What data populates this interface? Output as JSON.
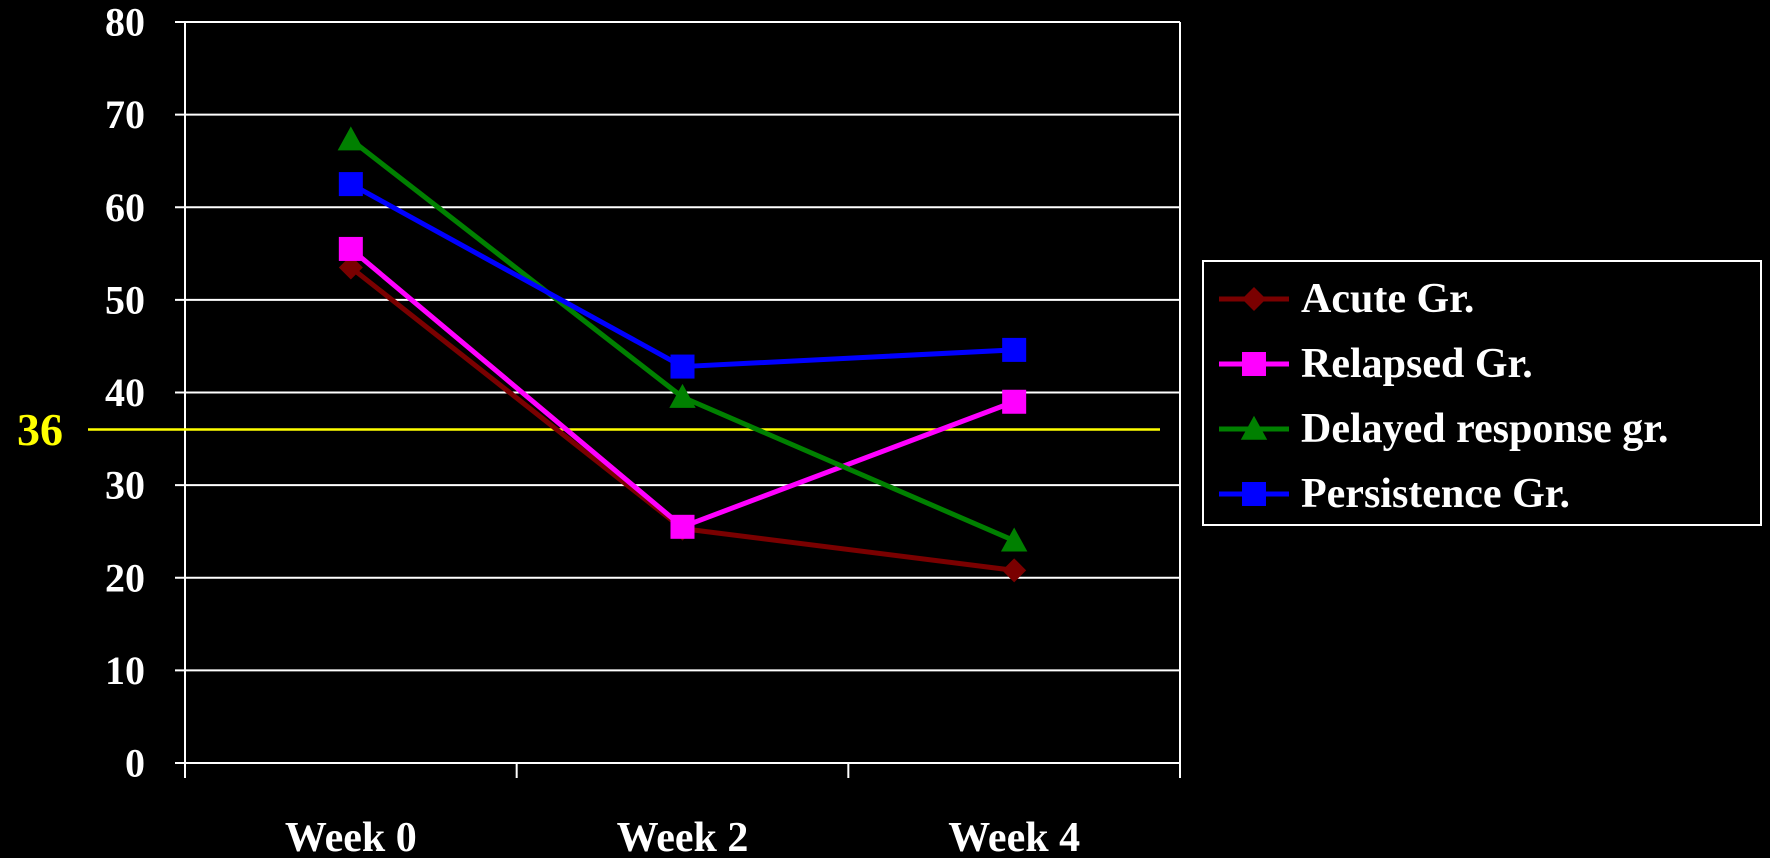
{
  "chart_data": {
    "type": "line",
    "categories": [
      "Week 0",
      "Week 2",
      "Week 4"
    ],
    "ylim": [
      0,
      80
    ],
    "yticks": [
      "0",
      "10",
      "20",
      "30",
      "40",
      "50",
      "60",
      "70",
      "80"
    ],
    "grid": true,
    "legend_position": "right",
    "reference_line": {
      "value": 36,
      "label": "36",
      "color": "#ffff00"
    },
    "series": [
      {
        "name": "Acute Gr.",
        "values": [
          53.5,
          25.3,
          20.8
        ],
        "color": "#7a0000",
        "marker": "diamond"
      },
      {
        "name": "Relapsed Gr.",
        "values": [
          55.5,
          25.5,
          39.0
        ],
        "color": "#ff00ff",
        "marker": "square"
      },
      {
        "name": "Delayed response gr.",
        "values": [
          67.3,
          39.5,
          24.0
        ],
        "color": "#008000",
        "marker": "triangle"
      },
      {
        "name": "Persistence Gr.",
        "values": [
          62.5,
          42.8,
          44.6
        ],
        "color": "#0000ff",
        "marker": "square"
      }
    ]
  }
}
